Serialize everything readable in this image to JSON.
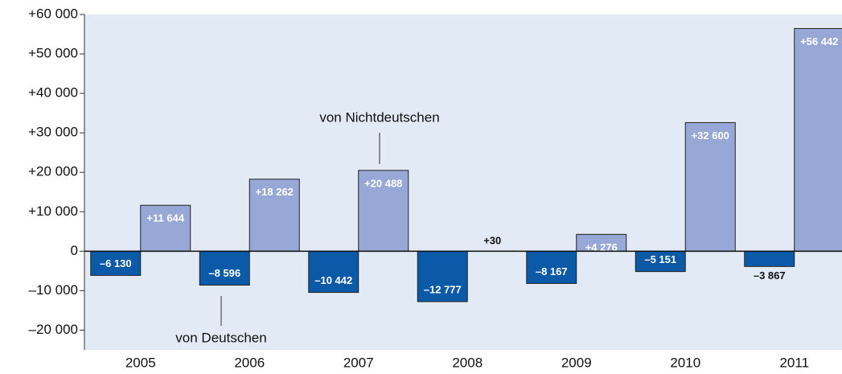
{
  "chart_data": {
    "type": "bar",
    "categories": [
      "2005",
      "2006",
      "2007",
      "2008",
      "2009",
      "2010",
      "2011"
    ],
    "series": [
      {
        "name": "von Deutschen",
        "color": "#0a5aa8",
        "values": [
          -6130,
          -8596,
          -10442,
          -12777,
          -8167,
          -5151,
          -3867
        ],
        "value_labels": [
          "–6 130",
          "–8 596",
          "–10 442",
          "–12 777",
          "–8 167",
          "–5 151",
          "–3 867"
        ]
      },
      {
        "name": "von Nichtdeutschen",
        "color": "#98a8d6",
        "values": [
          11644,
          18262,
          20488,
          30,
          4276,
          32600,
          56442
        ],
        "value_labels": [
          "+11 644",
          "+18 262",
          "+20 488",
          "+30",
          "+4 276",
          "+32 600",
          "+56 442"
        ]
      }
    ],
    "ylim": [
      -25000,
      60000
    ],
    "yticks": [
      {
        "value": -20000,
        "label": "–20 000"
      },
      {
        "value": -10000,
        "label": "–10 000"
      },
      0,
      {
        "value": 10000,
        "label": "+10 000"
      },
      {
        "value": 20000,
        "label": "+20 000"
      },
      {
        "value": 30000,
        "label": "+30 000"
      },
      {
        "value": 40000,
        "label": "+40 000"
      },
      {
        "value": 50000,
        "label": "+50 000"
      },
      {
        "value": 60000,
        "label": "+60 000"
      }
    ]
  }
}
